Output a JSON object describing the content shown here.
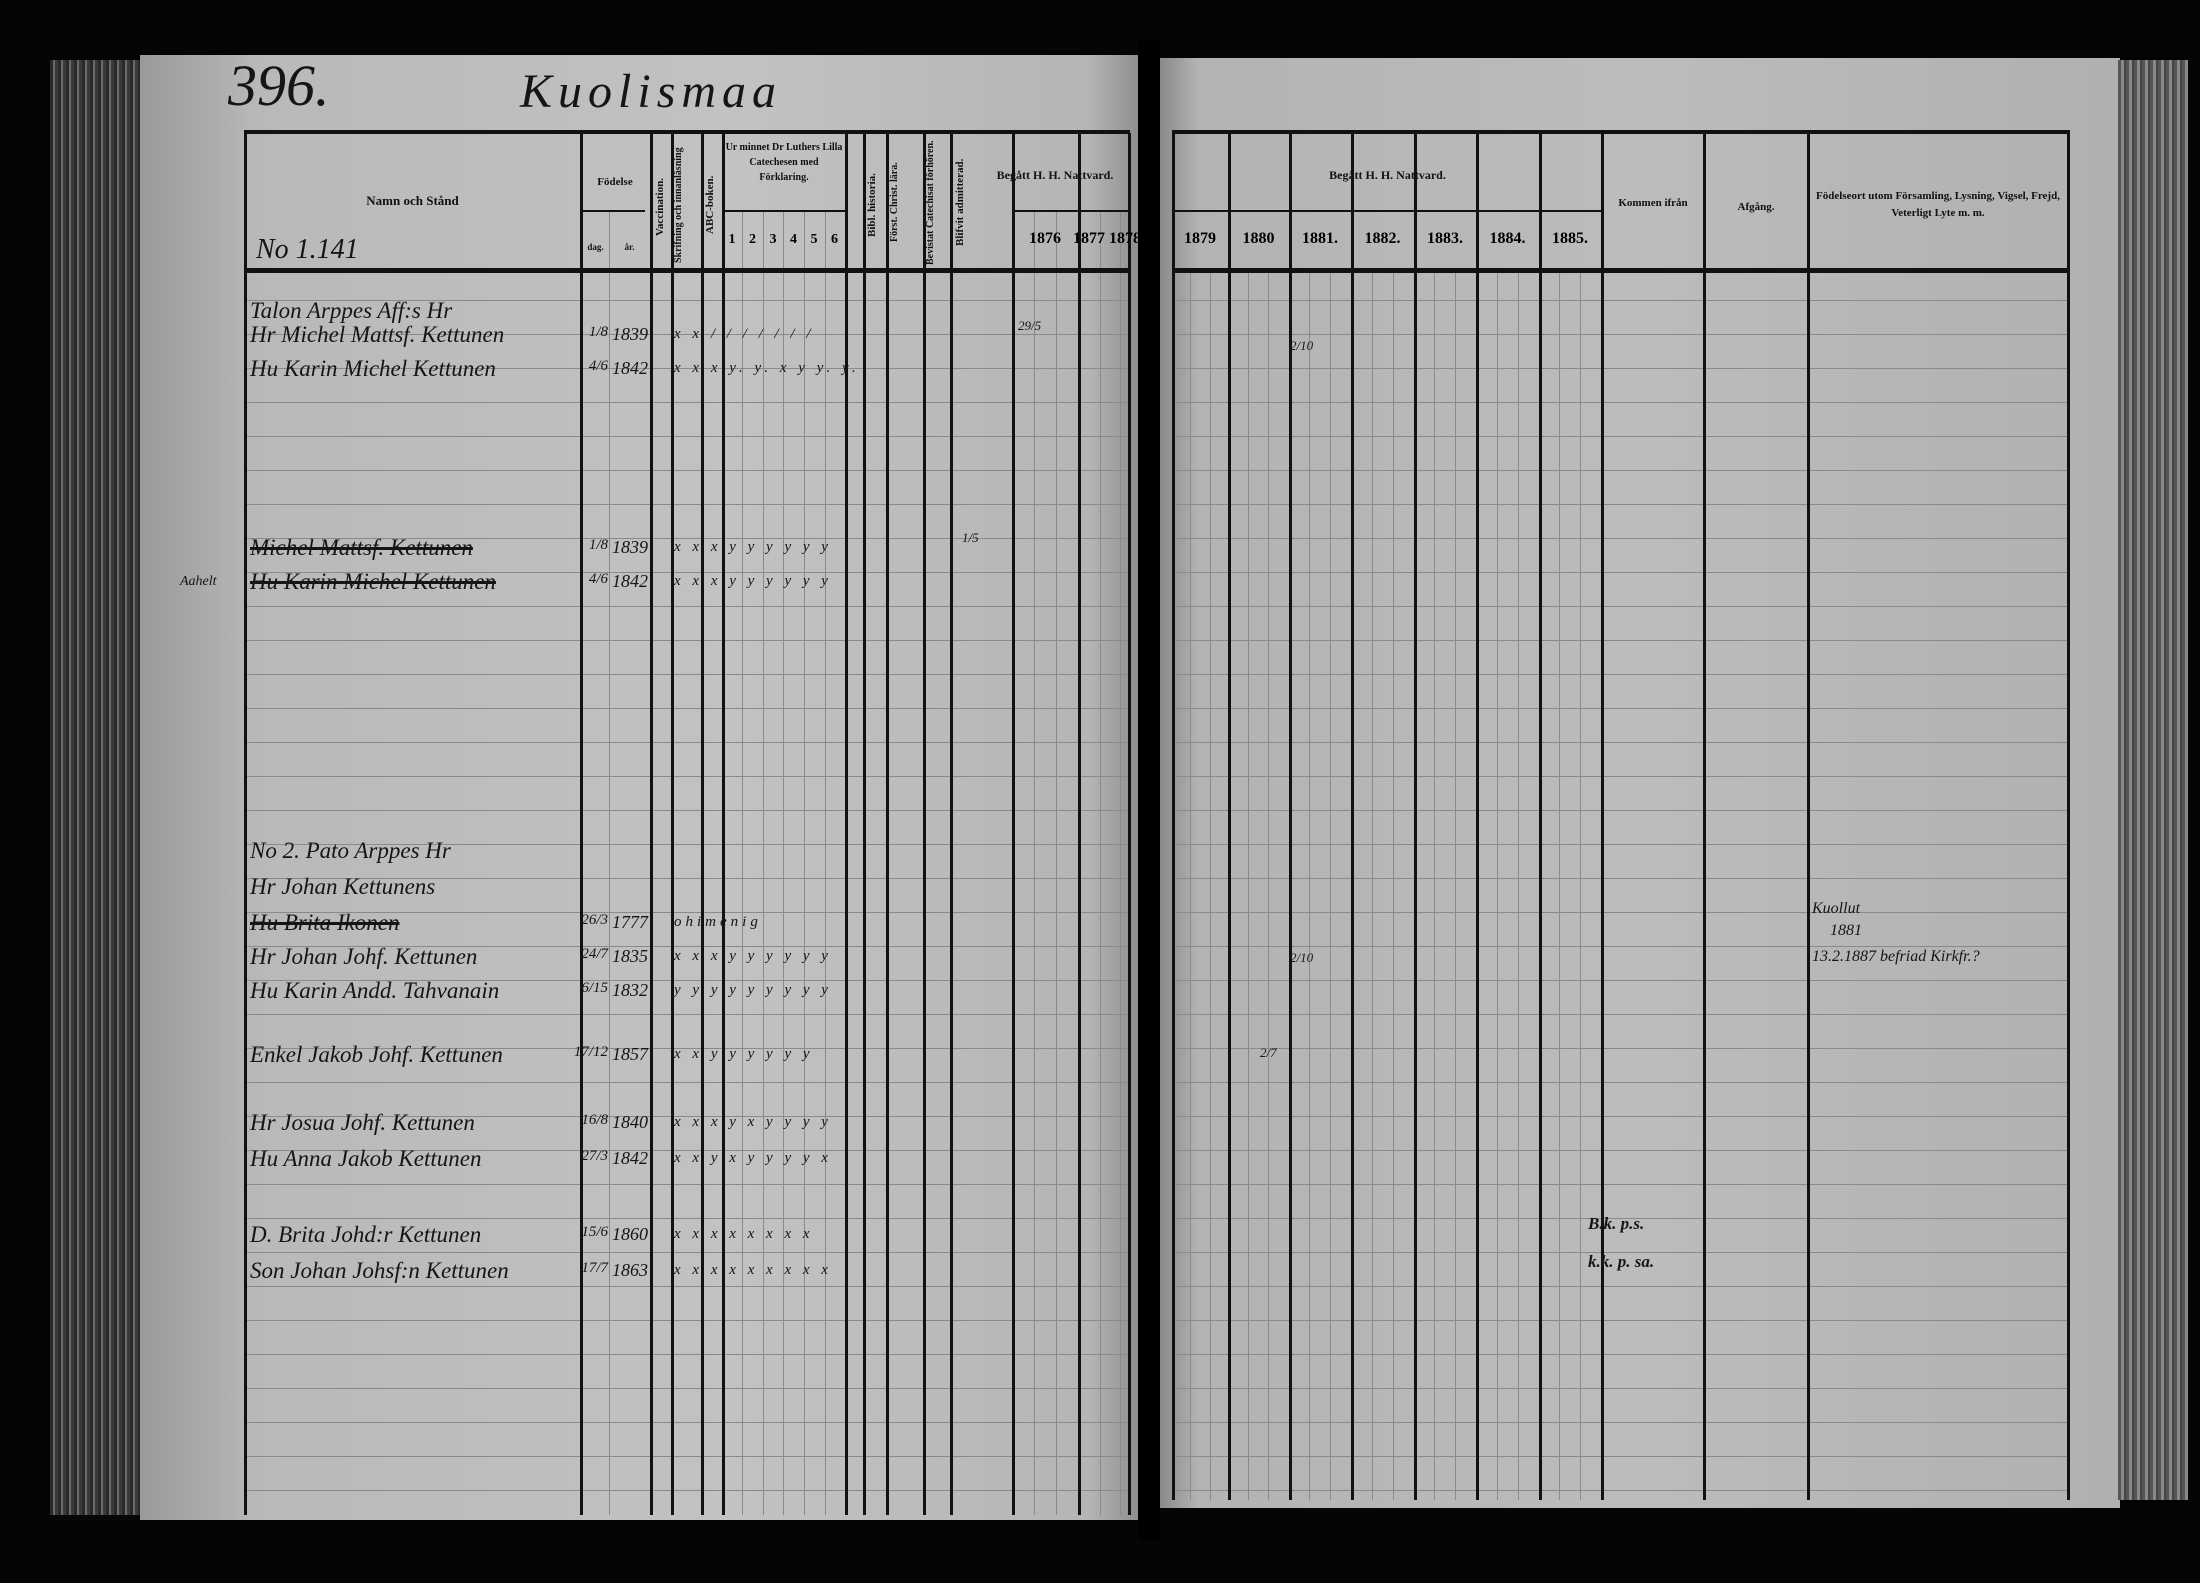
{
  "page_number": "396.",
  "village": "Kuolismaa",
  "household_number_top": "No 1.141",
  "left_header": {
    "name_col": "Namn och Stånd",
    "birth": "Födelse",
    "birth_day": "dag.",
    "birth_year": "år.",
    "vaccination": "Vaccination.",
    "reading": "Skrifning och innanläsning",
    "abc": "ABC-boken.",
    "catechism": "Ur minnet Dr Luthers Lilla Catechesen med Förklaring.",
    "catechism_cols": [
      "1",
      "2",
      "3",
      "4",
      "5",
      "6"
    ],
    "bible_history": "Bibl. historia.",
    "christ_doctrine": "Först. Christ. lära.",
    "catechetical": "Bevistat Catechisat förhören.",
    "admitted": "Blifvit admitterad.",
    "communion": "Begått H. H. Nattvard.",
    "years": [
      "1876",
      "1877",
      "1878"
    ]
  },
  "right_header": {
    "communion": "Begått H. H. Nattvard.",
    "years": [
      "1879",
      "1880",
      "1881.",
      "1882.",
      "1883.",
      "1884.",
      "1885."
    ],
    "came_from": "Kommen ifrån",
    "departure": "Afgång.",
    "remarks": "Födelseort utom Församling, Lysning, Vigsel, Frejd, Veterligt Lyte m. m."
  },
  "entries": [
    {
      "name": "Talon Arppes Aff:s Hr",
      "day": "",
      "year": "",
      "marks": "",
      "crossed": false
    },
    {
      "name": "Hr Michel Mattsf. Kettunen",
      "day": "1/8",
      "year": "1839",
      "marks": "x x  / / / / / / /",
      "crossed": false
    },
    {
      "name": "Hu Karin Michel Kettunen",
      "day": "4/6",
      "year": "1842",
      "marks": "x x  x y. y. x y y. y.",
      "crossed": false
    },
    {
      "name": "Michel Mattsf. Kettunen",
      "day": "1/8",
      "year": "1839",
      "marks": "x x x y y y y y y",
      "crossed": true
    },
    {
      "name": "Hu Karin Michel Kettunen",
      "day": "4/6",
      "year": "1842",
      "marks": "x x x y y y y y y",
      "crossed": true
    },
    {
      "name": "No 2. Pato Arppes Hr",
      "day": "",
      "year": "",
      "marks": "",
      "crossed": false
    },
    {
      "name": "Hr Johan Kettunens",
      "day": "",
      "year": "",
      "marks": "",
      "crossed": false
    },
    {
      "name": "Hu Brita Ikonen",
      "day": "26/3",
      "year": "1777",
      "marks": "ohimenig",
      "crossed": true
    },
    {
      "name": "Hr Johan Johf. Kettunen",
      "day": "24/7",
      "year": "1835",
      "marks": "x x x y y y y y y",
      "crossed": false
    },
    {
      "name": "Hu Karin Andd. Tahvanain",
      "day": "6/15",
      "year": "1832",
      "marks": "y y y y y y y y y",
      "crossed": false
    },
    {
      "name": "Enkel Jakob Johf. Kettunen",
      "day": "17/12",
      "year": "1857",
      "marks": "x x y y y y y y",
      "crossed": false
    },
    {
      "name": "Hr Josua Johf. Kettunen",
      "day": "16/8",
      "year": "1840",
      "marks": "x x x y x y y y y",
      "crossed": false
    },
    {
      "name": "Hu Anna Jakob Kettunen",
      "day": "27/3",
      "year": "1842",
      "marks": "x x y x y y y y x",
      "crossed": false
    },
    {
      "name": "D. Brita Johd:r Kettunen",
      "day": "15/6",
      "year": "1860",
      "marks": "x x  x x x x x x",
      "crossed": false
    },
    {
      "name": "Son Johan Johsf:n Kettunen",
      "day": "17/7",
      "year": "1863",
      "marks": "x x x x x x x x x",
      "crossed": false
    }
  ],
  "margin_note": "Aahelt",
  "came_from_notes": [
    "B.k. p.s.",
    "k.k. p. sa."
  ],
  "remarks_notes": [
    "Kuollut",
    "1881",
    "13.2.1887 befriad Kirkfr.?"
  ],
  "communion_marks": [
    "29/5",
    "2/10",
    "2/10",
    "2/7",
    "1/5"
  ]
}
